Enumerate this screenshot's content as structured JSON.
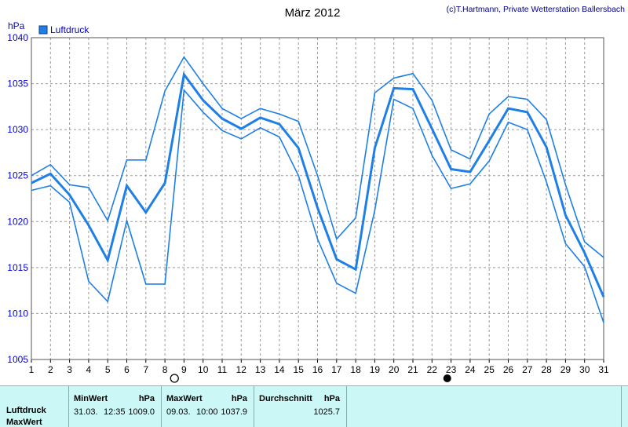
{
  "header": {
    "title": "März 2012",
    "credit": "(c)T.Hartmann, Private Wetterstation Ballersbach",
    "unit": "hPa",
    "legend_label": "Luftdruck"
  },
  "colors": {
    "series": "#1e7fe6",
    "grid": "#9a9a9a",
    "axis_text": "#0000cd",
    "footer_bg": "#ccf7f7"
  },
  "chart_data": {
    "type": "line",
    "title": "März 2012",
    "ylabel": "hPa",
    "ylim": [
      1005,
      1040
    ],
    "yticks": [
      1005,
      1010,
      1015,
      1020,
      1025,
      1030,
      1035,
      1040
    ],
    "x": [
      1,
      2,
      3,
      4,
      5,
      6,
      7,
      8,
      9,
      10,
      11,
      12,
      13,
      14,
      15,
      16,
      17,
      18,
      19,
      20,
      21,
      22,
      23,
      24,
      25,
      26,
      27,
      28,
      29,
      30,
      31
    ],
    "xtick_labels": [
      "1",
      "2",
      "3",
      "4",
      "5",
      "6",
      "7",
      "8",
      "9",
      "10",
      "11",
      "12",
      "13",
      "14",
      "15",
      "16",
      "17",
      "18",
      "19",
      "20",
      "21",
      "22",
      "23",
      "24",
      "25",
      "26",
      "27",
      "28",
      "29",
      "30",
      "31"
    ],
    "grid": true,
    "legend": "top-left",
    "moon_phases": [
      {
        "day": 8.5,
        "phase": "full"
      },
      {
        "day": 22.8,
        "phase": "new"
      }
    ],
    "series": [
      {
        "name": "Luftdruck",
        "role": "max",
        "values": [
          1025.0,
          1026.2,
          1024.0,
          1023.7,
          1020.1,
          1026.7,
          1026.7,
          1034.2,
          1037.9,
          1035.0,
          1032.3,
          1031.2,
          1032.3,
          1031.7,
          1030.9,
          1025.0,
          1018.1,
          1020.4,
          1034.0,
          1035.6,
          1036.1,
          1033.2,
          1027.8,
          1026.8,
          1031.7,
          1033.6,
          1033.3,
          1031.1,
          1024.0,
          1017.8,
          1016.1
        ]
      },
      {
        "name": "Luftdruck",
        "role": "avg",
        "values": [
          1024.2,
          1025.2,
          1022.9,
          1019.6,
          1015.8,
          1023.9,
          1021.0,
          1024.2,
          1036.0,
          1033.2,
          1031.2,
          1030.1,
          1031.3,
          1030.6,
          1028.0,
          1021.5,
          1015.9,
          1014.8,
          1028.0,
          1034.5,
          1034.4,
          1030.1,
          1025.7,
          1025.4,
          1028.8,
          1032.3,
          1031.9,
          1028.1,
          1020.7,
          1016.6,
          1011.8
        ]
      },
      {
        "name": "Luftdruck",
        "role": "min",
        "values": [
          1023.4,
          1023.9,
          1022.1,
          1013.5,
          1011.3,
          1020.1,
          1013.2,
          1013.2,
          1034.3,
          1031.9,
          1029.9,
          1029.0,
          1030.2,
          1029.2,
          1025.0,
          1018.1,
          1013.3,
          1012.2,
          1021.2,
          1033.3,
          1032.3,
          1027.2,
          1023.6,
          1024.1,
          1026.6,
          1030.8,
          1030.0,
          1024.3,
          1017.6,
          1015.1,
          1009.0
        ]
      }
    ]
  },
  "stats": {
    "row_label_1": "Luftdruck",
    "row_label_2": "MaxWert",
    "min": {
      "header": "MinWert",
      "unit": "hPa",
      "date": "31.03.",
      "time": "12:35",
      "value": "1009.0"
    },
    "max": {
      "header": "MaxWert",
      "unit": "hPa",
      "date": "09.03.",
      "time": "10:00",
      "value": "1037.9"
    },
    "avg": {
      "header": "Durchschnitt",
      "unit": "hPa",
      "value": "1025.7"
    }
  }
}
